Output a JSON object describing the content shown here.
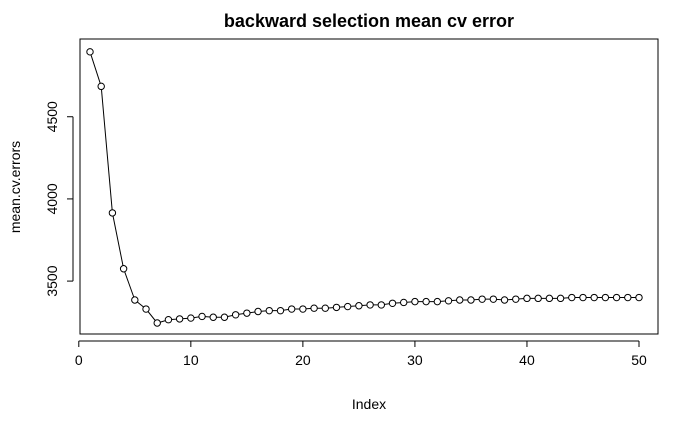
{
  "chart_data": {
    "type": "line",
    "title": "backward selection mean cv error",
    "xlabel": "Index",
    "ylabel": "mean.cv.errors",
    "xlim": [
      1,
      50
    ],
    "ylim": [
      3245,
      4900
    ],
    "x_ticks": [
      0,
      10,
      20,
      30,
      40,
      50
    ],
    "y_ticks": [
      3500,
      4000,
      4500
    ],
    "markers": "open-circle",
    "connecting_line": true,
    "grid": false,
    "legend": "none",
    "colors": {
      "line": "#000000",
      "marker_stroke": "#000000",
      "marker_fill": "#ffffff",
      "frame": "#000000"
    },
    "series": [
      {
        "x": [
          1,
          2,
          3,
          4,
          5,
          6,
          7,
          8,
          9,
          10,
          11,
          12,
          13,
          14,
          15,
          16,
          17,
          18,
          19,
          20,
          21,
          22,
          23,
          24,
          25,
          26,
          27,
          28,
          29,
          30,
          31,
          32,
          33,
          34,
          35,
          36,
          37,
          38,
          39,
          40,
          41,
          42,
          43,
          44,
          45,
          46,
          47,
          48,
          49,
          50
        ],
        "y": [
          4895,
          4685,
          3915,
          3575,
          3385,
          3330,
          3245,
          3265,
          3270,
          3275,
          3285,
          3280,
          3280,
          3295,
          3305,
          3315,
          3320,
          3320,
          3330,
          3330,
          3335,
          3335,
          3340,
          3345,
          3350,
          3355,
          3355,
          3365,
          3370,
          3375,
          3375,
          3375,
          3380,
          3385,
          3385,
          3390,
          3390,
          3385,
          3390,
          3395,
          3395,
          3395,
          3395,
          3400,
          3400,
          3400,
          3400,
          3400,
          3400,
          3400
        ]
      }
    ]
  }
}
